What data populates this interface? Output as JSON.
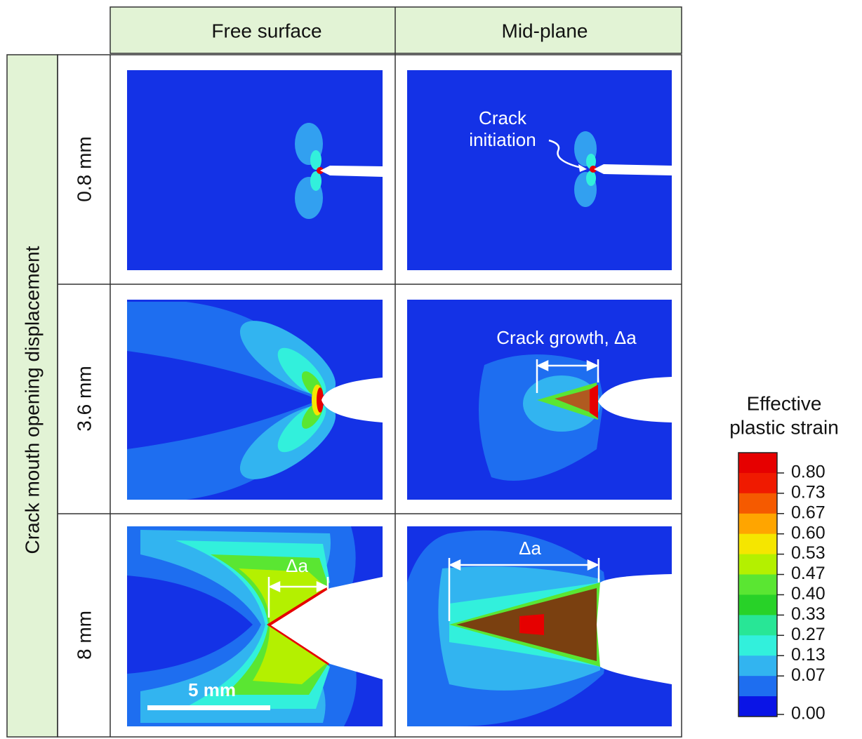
{
  "columns": [
    "Free surface",
    "Mid-plane"
  ],
  "row_axis_title": "Crack mouth opening displacement",
  "rows": [
    "0.8 mm",
    "3.6 mm",
    "8 mm"
  ],
  "annotations": {
    "crack_initiation": [
      "Crack",
      "initiation"
    ],
    "crack_growth": "Crack growth, Δa",
    "delta_a": "Δa",
    "scale_bar": "5 mm"
  },
  "colorbar": {
    "title": [
      "Effective",
      "plastic strain"
    ],
    "ticks": [
      {
        "value": 0.8,
        "label": "0.80"
      },
      {
        "value": 0.73,
        "label": "0.73"
      },
      {
        "value": 0.67,
        "label": "0.67"
      },
      {
        "value": 0.6,
        "label": "0.60"
      },
      {
        "value": 0.53,
        "label": "0.53"
      },
      {
        "value": 0.47,
        "label": "0.47"
      },
      {
        "value": 0.4,
        "label": "0.40"
      },
      {
        "value": 0.33,
        "label": "0.33"
      },
      {
        "value": 0.27,
        "label": "0.27"
      },
      {
        "value": 0.13,
        "label": "0.13"
      },
      {
        "value": 0.07,
        "label": "0.07"
      },
      {
        "value": 0,
        "label": "0.00"
      }
    ],
    "colors": [
      "#e60000",
      "#f01a00",
      "#f55a00",
      "#ffa500",
      "#f5e600",
      "#b4f000",
      "#5ae632",
      "#28d228",
      "#28e696",
      "#32f0dc",
      "#32b4f0",
      "#1e6ef0",
      "#0a14e6"
    ]
  }
}
